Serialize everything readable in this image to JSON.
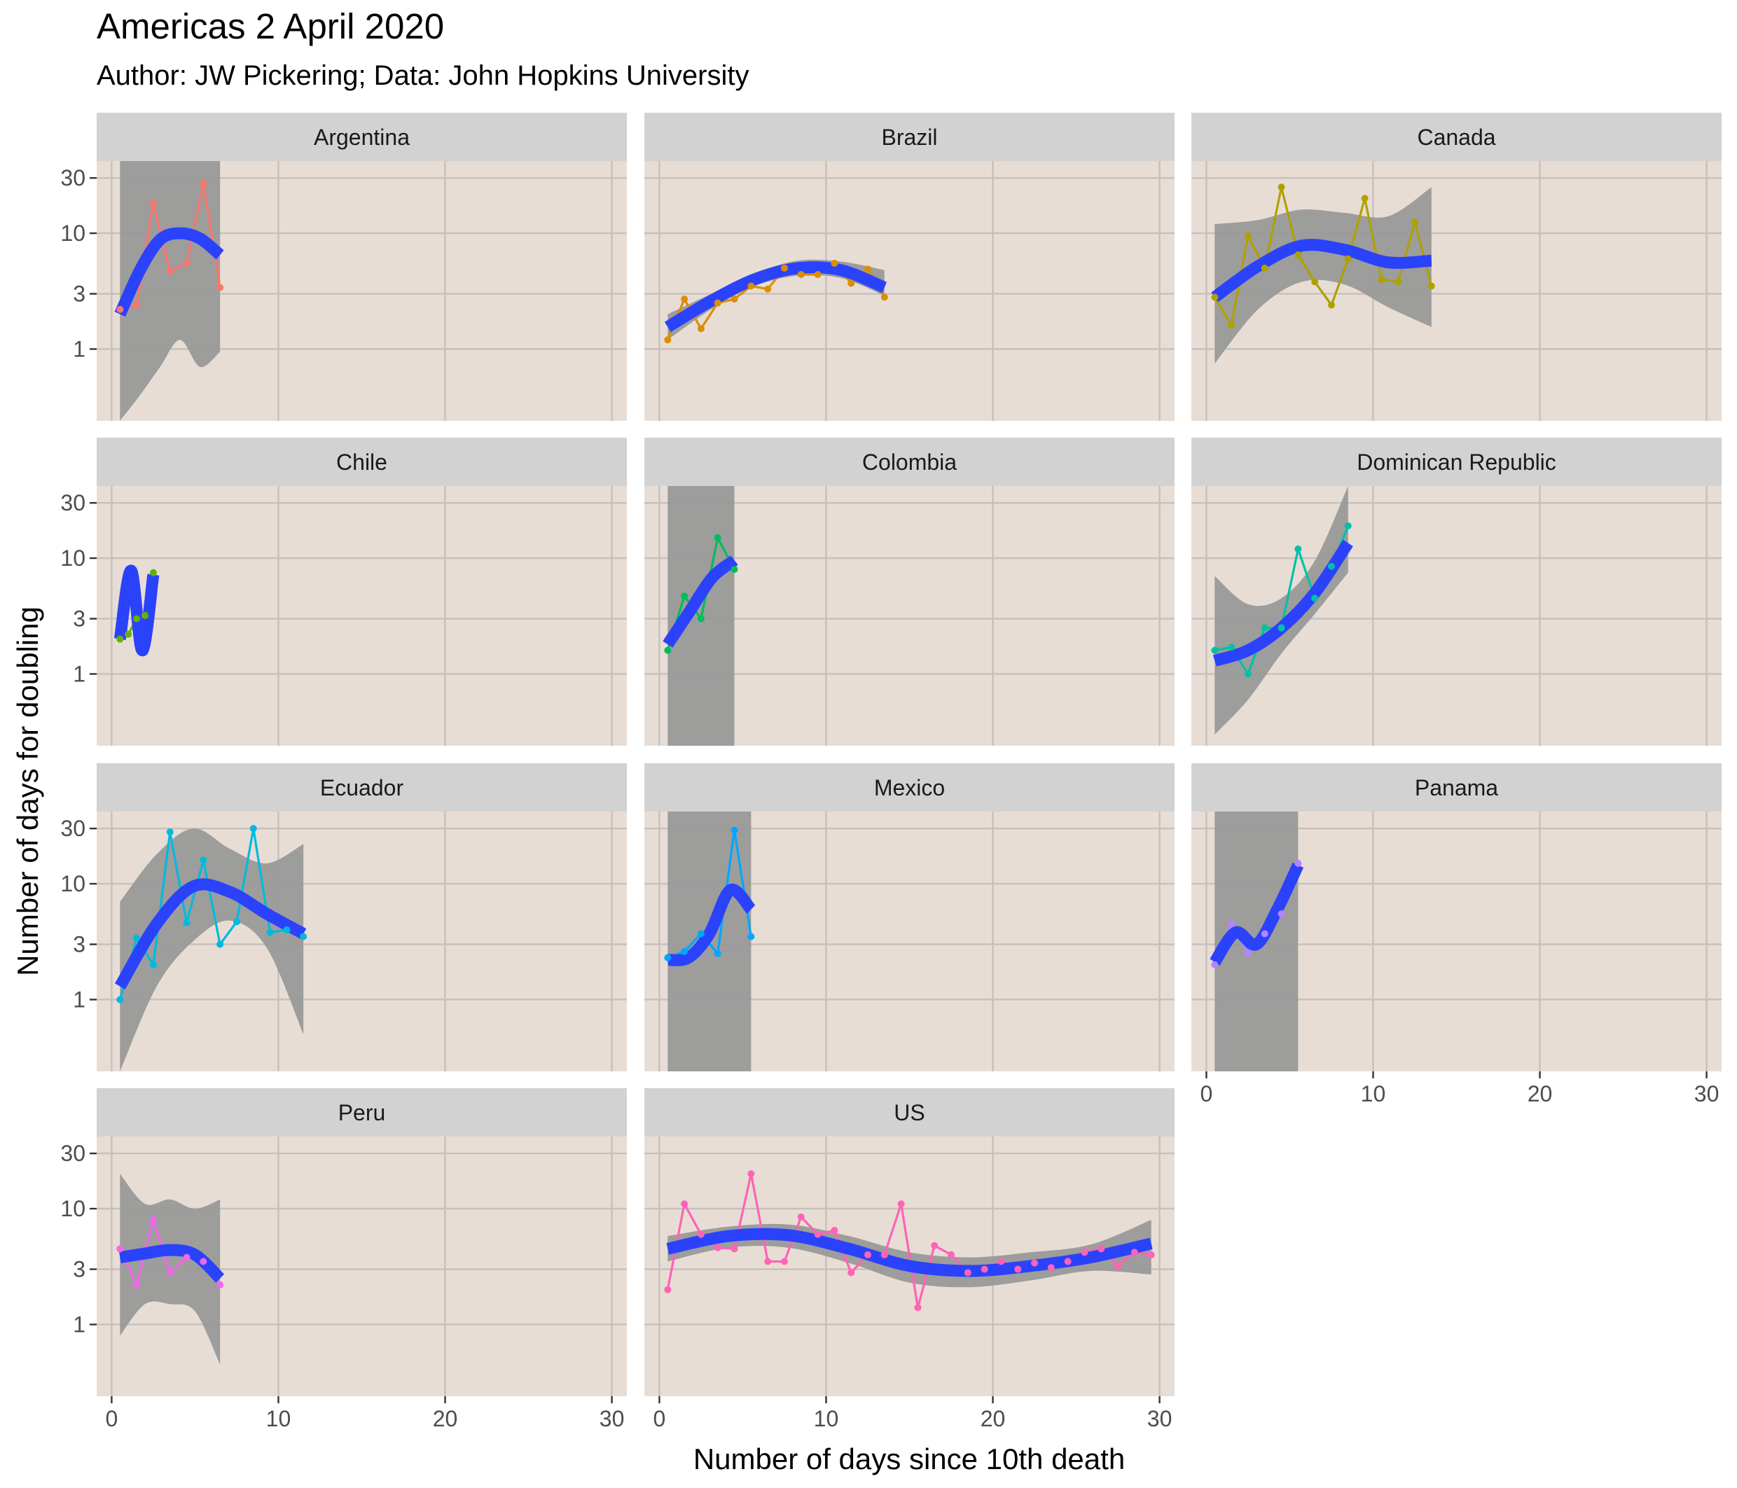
{
  "chart_data": {
    "type": "line",
    "title": "Americas 2 April 2020",
    "subtitle": "Author: JW Pickering; Data: John Hopkins University",
    "xlabel": "Number of days since 10th death",
    "ylabel": "Number of days for doubling",
    "x_ticks": [
      0,
      10,
      20,
      30
    ],
    "y_ticks": [
      1,
      3,
      10,
      30
    ],
    "x_range": [
      -0.9,
      30.9
    ],
    "y_range": [
      0.24,
      42
    ],
    "y_scale": "log",
    "layout": "facet_wrap 3 columns",
    "panels": [
      {
        "name": "Argentina",
        "color": "#F8766D",
        "x": [
          0.5,
          1.5,
          2.5,
          3.5,
          4.5,
          5.5,
          6.5
        ],
        "y": [
          2.2,
          2.4,
          18,
          4.7,
          5.5,
          27,
          3.4
        ],
        "smooth": [
          2.0,
          4.8,
          8.8,
          10.0,
          9.0,
          6.5
        ],
        "band_low": [
          0.24,
          0.4,
          0.7,
          1.2,
          0.7,
          0.95
        ],
        "band_high": [
          42,
          42,
          42,
          42,
          42,
          42
        ]
      },
      {
        "name": "Brazil",
        "color": "#DB8E00",
        "x": [
          0.5,
          1.5,
          2.5,
          3.5,
          4.5,
          5.5,
          6.5,
          7.5,
          8.5,
          9.5,
          10.5,
          11.5,
          12.5,
          13.5
        ],
        "y": [
          1.2,
          2.7,
          1.5,
          2.5,
          2.7,
          3.5,
          3.3,
          5.0,
          4.4,
          4.4,
          5.5,
          3.7,
          4.9,
          2.8
        ],
        "smooth": [
          1.55,
          2.6,
          4.0,
          5.0,
          4.8,
          3.4
        ],
        "band_low": [
          1.2,
          2.2,
          3.5,
          4.3,
          4.1,
          2.9
        ],
        "band_high": [
          2.0,
          3.0,
          4.5,
          5.8,
          5.7,
          4.8
        ]
      },
      {
        "name": "Canada",
        "color": "#AEA200",
        "x": [
          0.5,
          1.5,
          2.5,
          3.5,
          4.5,
          5.5,
          6.5,
          7.5,
          8.5,
          9.5,
          10.5,
          11.5,
          12.5,
          13.5
        ],
        "y": [
          2.8,
          1.6,
          9.5,
          5.0,
          25,
          6.5,
          3.8,
          2.4,
          6.0,
          20,
          4.0,
          3.8,
          12.5,
          3.5
        ],
        "smooth": [
          2.8,
          5.2,
          7.8,
          7.2,
          5.6,
          5.8
        ],
        "band_low": [
          0.75,
          2.2,
          3.8,
          3.6,
          2.3,
          1.55
        ],
        "band_high": [
          12,
          13,
          16,
          15,
          14,
          25
        ]
      },
      {
        "name": "Chile",
        "color": "#64B200",
        "x": [
          0.5,
          1.0,
          1.5,
          2.0,
          2.5
        ],
        "y": [
          2.0,
          2.2,
          3.0,
          3.2,
          7.5
        ],
        "smooth": [
          2.0,
          7.8,
          1.6,
          7.2
        ],
        "band_low": [],
        "band_high": []
      },
      {
        "name": "Colombia",
        "color": "#00BD5C",
        "x": [
          0.5,
          1.5,
          2.5,
          3.5,
          4.5
        ],
        "y": [
          1.6,
          4.7,
          3.0,
          15,
          8.0
        ],
        "smooth": [
          1.8,
          3.5,
          6.8,
          9.6
        ],
        "band_low": [
          0.24,
          0.24,
          0.24,
          0.24
        ],
        "band_high": [
          42,
          42,
          42,
          42
        ]
      },
      {
        "name": "Dominican Republic",
        "color": "#00C1A7",
        "x": [
          0.5,
          1.5,
          2.5,
          3.5,
          4.5,
          5.5,
          6.5,
          7.5,
          8.5
        ],
        "y": [
          1.6,
          1.7,
          1.0,
          2.5,
          2.5,
          12,
          4.5,
          8.5,
          19
        ],
        "smooth": [
          1.3,
          1.6,
          2.5,
          5.0,
          13.5
        ],
        "band_low": [
          0.3,
          0.6,
          1.5,
          3.3,
          7.5
        ],
        "band_high": [
          7,
          4,
          4.5,
          9.5,
          42
        ]
      },
      {
        "name": "Ecuador",
        "color": "#00BADE",
        "x": [
          0.5,
          1.5,
          2.5,
          3.5,
          4.5,
          5.5,
          6.5,
          7.5,
          8.5,
          9.5,
          10.5,
          11.5
        ],
        "y": [
          1.0,
          3.4,
          2.0,
          28,
          4.6,
          16,
          3.0,
          4.7,
          30,
          3.8,
          4.0,
          3.5
        ],
        "smooth": [
          1.3,
          4.5,
          9.5,
          8.5,
          5.5,
          3.7
        ],
        "band_low": [
          0.24,
          1.3,
          3.2,
          4.8,
          2.8,
          0.5
        ],
        "band_high": [
          7,
          18,
          30,
          20,
          15,
          22
        ]
      },
      {
        "name": "Mexico",
        "color": "#00A6FF",
        "x": [
          0.5,
          1.5,
          2.5,
          3.5,
          4.5,
          5.5
        ],
        "y": [
          2.3,
          2.6,
          3.7,
          2.5,
          29,
          3.5
        ],
        "smooth": [
          2.2,
          2.3,
          3.7,
          8.8,
          6.0
        ],
        "band_low": [
          0.24,
          0.24,
          0.24,
          0.24,
          0.24
        ],
        "band_high": [
          42,
          42,
          42,
          42,
          42
        ]
      },
      {
        "name": "Panama",
        "color": "#B385FF",
        "x": [
          0.5,
          1.5,
          2.5,
          3.5,
          4.5,
          5.5
        ],
        "y": [
          2.0,
          4.5,
          2.5,
          3.7,
          5.5,
          15
        ],
        "smooth": [
          2.1,
          3.8,
          3.0,
          6.0,
          14.5
        ],
        "band_low": [
          0.24,
          0.24,
          0.24,
          0.24,
          0.24
        ],
        "band_high": [
          42,
          42,
          42,
          42,
          42
        ]
      },
      {
        "name": "Peru",
        "color": "#EF67EB",
        "x": [
          0.5,
          1.5,
          2.5,
          3.5,
          4.5,
          5.5,
          6.5
        ],
        "y": [
          4.5,
          2.2,
          8.0,
          2.8,
          3.8,
          3.5,
          2.2
        ],
        "smooth": [
          3.8,
          4.1,
          4.4,
          4.0,
          2.5
        ],
        "band_low": [
          0.8,
          1.5,
          1.5,
          1.3,
          0.45
        ],
        "band_high": [
          20,
          11,
          12,
          10,
          12
        ]
      },
      {
        "name": "US",
        "color": "#FF63B6",
        "x": [
          0.5,
          1.5,
          2.5,
          3.5,
          4.5,
          5.5,
          6.5,
          7.5,
          8.5,
          9.5,
          10.5,
          11.5,
          12.5,
          13.5,
          14.5,
          15.5,
          16.5,
          17.5,
          18.5,
          19.5,
          20.5,
          21.5,
          22.5,
          23.5,
          24.5,
          25.5,
          26.5,
          27.5,
          28.5,
          29.5
        ],
        "y": [
          2.0,
          11,
          6.0,
          4.6,
          4.5,
          20,
          3.5,
          3.5,
          8.5,
          6.0,
          6.5,
          2.8,
          4.0,
          4.0,
          11,
          1.4,
          4.8,
          4.0,
          2.8,
          3.0,
          3.5,
          3.0,
          3.4,
          3.1,
          3.5,
          4.2,
          4.5,
          3.2,
          4.2,
          4.0
        ],
        "smooth": [
          4.5,
          5.8,
          5.9,
          4.5,
          3.2,
          2.9,
          3.2,
          3.8,
          5.0
        ],
        "band_low": [
          3.5,
          4.6,
          4.6,
          3.4,
          2.3,
          2.1,
          2.4,
          2.9,
          2.7
        ],
        "band_high": [
          5.8,
          7.0,
          7.3,
          5.8,
          4.2,
          3.8,
          4.2,
          4.9,
          8.0
        ]
      }
    ]
  }
}
